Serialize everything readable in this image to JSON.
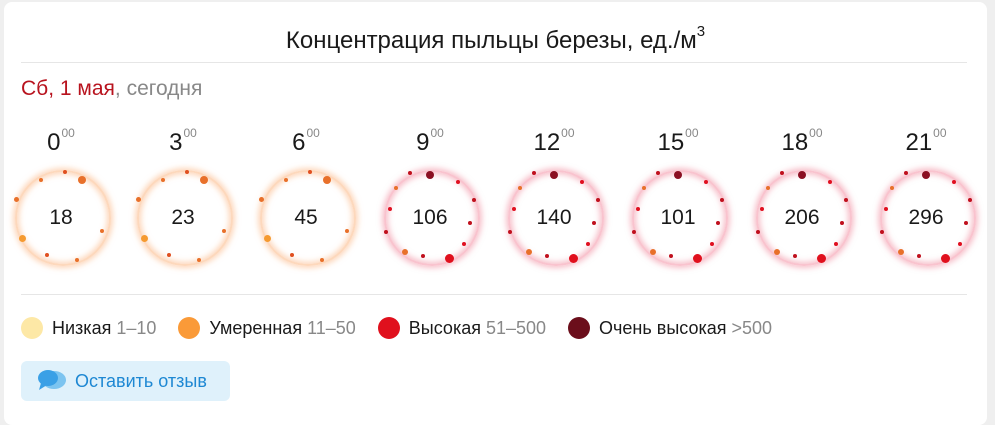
{
  "title": {
    "text": "Концентрация пыльцы березы, ед./м",
    "sup": "3"
  },
  "date": {
    "day": "Сб, 1 мая",
    "comma": ",",
    "today": "сегодня"
  },
  "hours": [
    {
      "hour": "0",
      "minutes": "00",
      "value": "18",
      "level": "Умеренная"
    },
    {
      "hour": "3",
      "minutes": "00",
      "value": "23",
      "level": "Умеренная"
    },
    {
      "hour": "6",
      "minutes": "00",
      "value": "45",
      "level": "Умеренная"
    },
    {
      "hour": "9",
      "minutes": "00",
      "value": "106",
      "level": "Высокая"
    },
    {
      "hour": "12",
      "minutes": "00",
      "value": "140",
      "level": "Высокая"
    },
    {
      "hour": "15",
      "minutes": "00",
      "value": "101",
      "level": "Высокая"
    },
    {
      "hour": "18",
      "minutes": "00",
      "value": "206",
      "level": "Высокая"
    },
    {
      "hour": "21",
      "minutes": "00",
      "value": "296",
      "level": "Высокая"
    }
  ],
  "legend": [
    {
      "label": "Низкая",
      "range": "1–10",
      "color": "#fde8a6"
    },
    {
      "label": "Умеренная",
      "range": "11–50",
      "color": "#fa9a38"
    },
    {
      "label": "Высокая",
      "range": "51–500",
      "color": "#e0101d"
    },
    {
      "label": "Очень высокая",
      "range": ">500",
      "color": "#6b0e1b"
    }
  ],
  "feedback": {
    "label": "Оставить отзыв",
    "icon": "chat-bubbles-icon"
  },
  "colors": {
    "ring_orange": "#fcc8a0",
    "ring_red": "#f6aab9"
  }
}
